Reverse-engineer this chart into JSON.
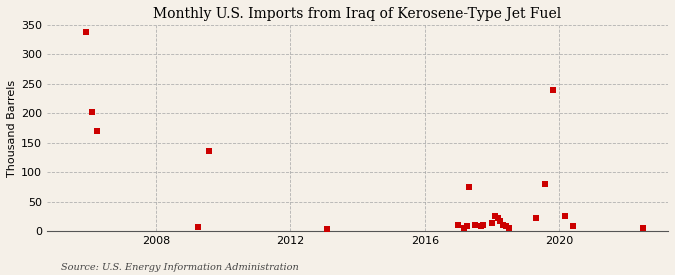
{
  "title": "Monthly U.S. Imports from Iraq of Kerosene-Type Jet Fuel",
  "ylabel": "Thousand Barrels",
  "source": "Source: U.S. Energy Information Administration",
  "background_color": "#f5f0e8",
  "plot_background_color": "#f5f0e8",
  "marker_color": "#cc0000",
  "marker_size": 4,
  "ylim": [
    0,
    350
  ],
  "yticks": [
    0,
    50,
    100,
    150,
    200,
    250,
    300,
    350
  ],
  "xlim_start": 2004.75,
  "xlim_end": 2023.25,
  "xticks": [
    2008,
    2012,
    2016,
    2020
  ],
  "data_points": [
    [
      2005.92,
      338
    ],
    [
      2006.08,
      203
    ],
    [
      2006.25,
      170
    ],
    [
      2009.25,
      7
    ],
    [
      2009.58,
      136
    ],
    [
      2013.08,
      4
    ],
    [
      2017.0,
      10
    ],
    [
      2017.17,
      5
    ],
    [
      2017.25,
      8
    ],
    [
      2017.33,
      75
    ],
    [
      2017.5,
      11
    ],
    [
      2017.67,
      9
    ],
    [
      2017.75,
      10
    ],
    [
      2018.0,
      14
    ],
    [
      2018.08,
      25
    ],
    [
      2018.17,
      22
    ],
    [
      2018.25,
      18
    ],
    [
      2018.33,
      10
    ],
    [
      2018.42,
      8
    ],
    [
      2018.5,
      5
    ],
    [
      2019.33,
      22
    ],
    [
      2019.58,
      80
    ],
    [
      2019.83,
      240
    ],
    [
      2020.17,
      25
    ],
    [
      2020.42,
      8
    ],
    [
      2022.5,
      5
    ]
  ]
}
